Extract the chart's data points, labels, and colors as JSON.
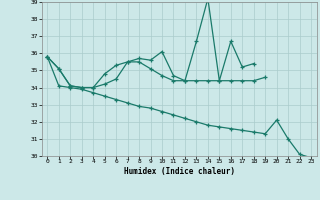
{
  "xlabel": "Humidex (Indice chaleur)",
  "background_color": "#cce8e8",
  "grid_color": "#aacccc",
  "line_color": "#1a7a6a",
  "x": [
    0,
    1,
    2,
    3,
    4,
    5,
    6,
    7,
    8,
    9,
    10,
    11,
    12,
    13,
    14,
    15,
    16,
    17,
    18,
    19,
    20,
    21,
    22,
    23
  ],
  "series1": [
    35.8,
    35.1,
    34.1,
    34.0,
    34.0,
    34.8,
    35.3,
    35.5,
    35.7,
    35.6,
    36.1,
    34.7,
    34.4,
    36.7,
    39.2,
    34.4,
    36.7,
    35.2,
    35.4,
    null,
    null,
    null,
    null,
    null
  ],
  "series2": [
    35.8,
    35.1,
    34.1,
    34.0,
    34.0,
    34.2,
    34.5,
    35.5,
    35.5,
    35.1,
    34.7,
    34.4,
    34.4,
    34.4,
    34.4,
    34.4,
    34.4,
    34.4,
    34.4,
    34.6,
    null,
    null,
    null,
    null
  ],
  "series3": [
    35.8,
    34.1,
    34.0,
    33.9,
    33.7,
    33.5,
    33.3,
    33.1,
    32.9,
    32.8,
    32.6,
    32.4,
    32.2,
    32.0,
    31.8,
    31.7,
    31.6,
    31.5,
    31.4,
    31.3,
    32.1,
    31.0,
    30.1,
    29.9
  ],
  "ylim": [
    30,
    39
  ],
  "yticks": [
    30,
    31,
    32,
    33,
    34,
    35,
    36,
    37,
    38,
    39
  ],
  "xticks": [
    0,
    1,
    2,
    3,
    4,
    5,
    6,
    7,
    8,
    9,
    10,
    11,
    12,
    13,
    14,
    15,
    16,
    17,
    18,
    19,
    20,
    21,
    22,
    23
  ]
}
